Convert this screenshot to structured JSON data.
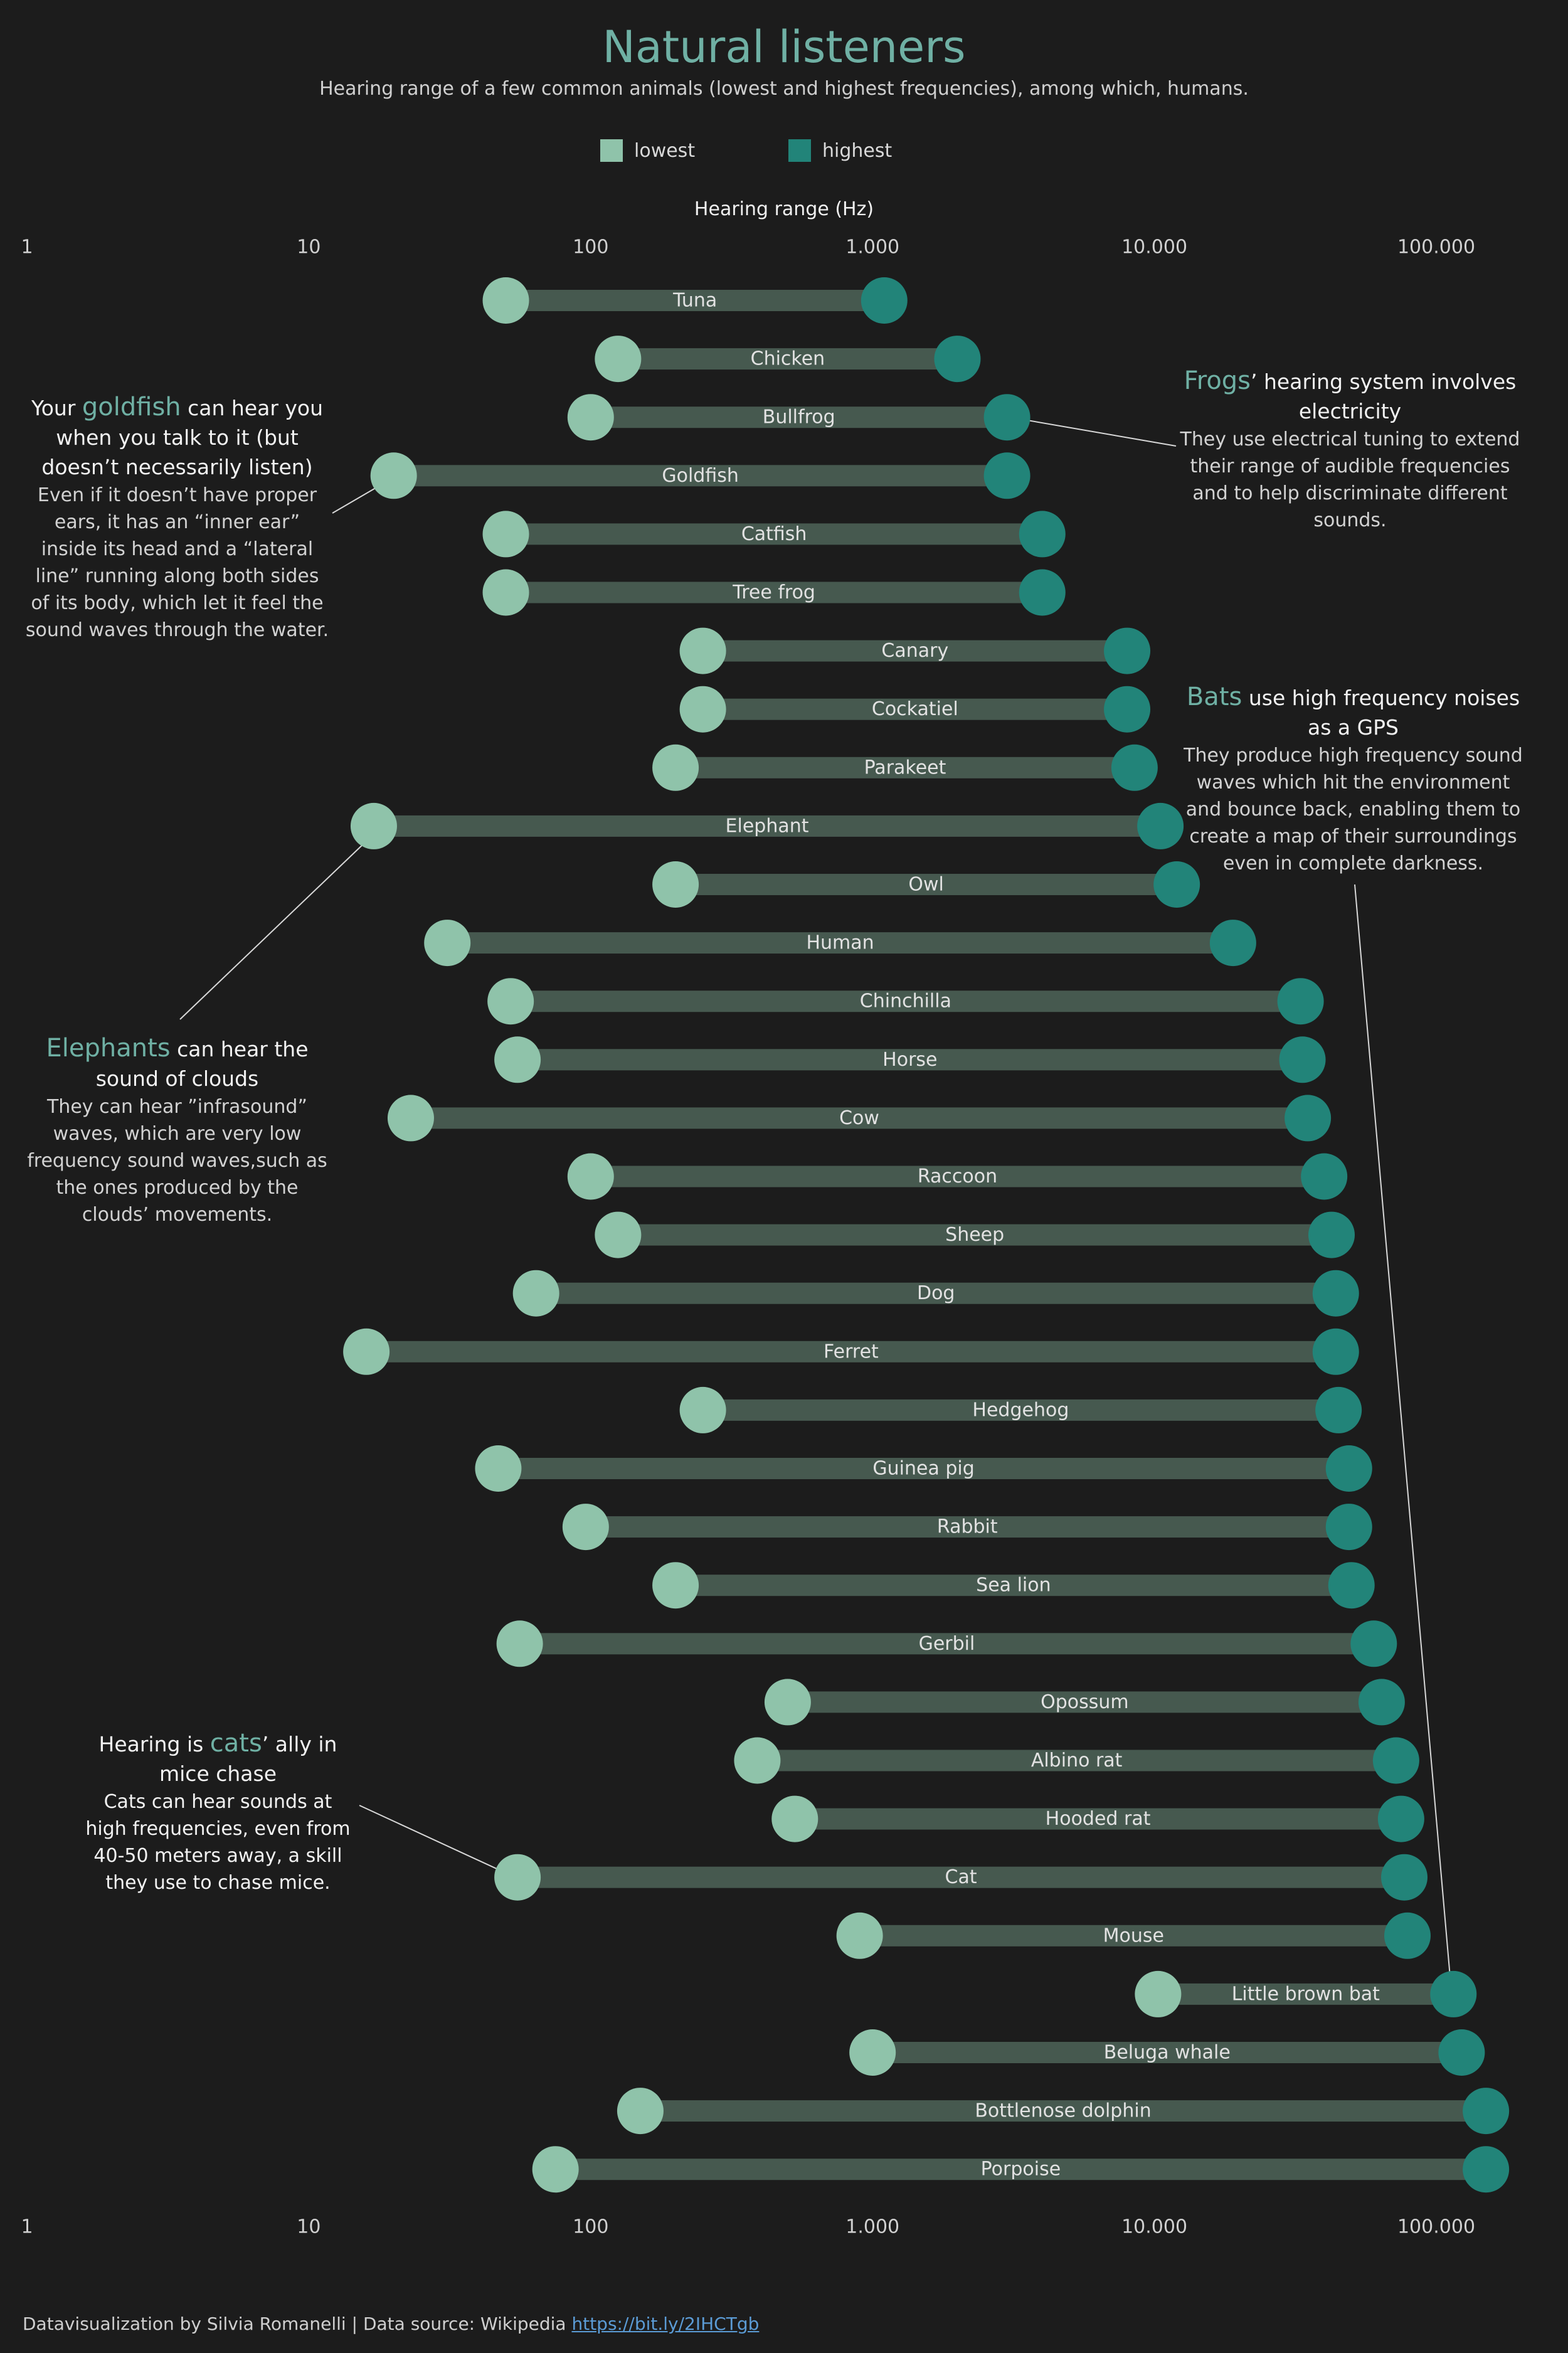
{
  "header": {
    "title": "Natural listeners",
    "subtitle": "Hearing range of a few common animals (lowest and highest frequencies), among which, humans."
  },
  "legend": {
    "lowest": "lowest",
    "highest": "highest"
  },
  "colors": {
    "background": "#1c1c1c",
    "lowest": "#8fc3aa",
    "highest": "#228479",
    "bar": "#46594f",
    "accent": "#6fb0a4"
  },
  "chart_data": {
    "type": "dumbbell",
    "xlabel": "Hearing range (Hz)",
    "x_scale": "log",
    "xlim": [
      1,
      300000
    ],
    "tick_values": [
      1,
      10,
      100,
      1000,
      10000,
      100000
    ],
    "tick_labels": [
      "1",
      "10",
      "100",
      "1.000",
      "10.000",
      "100.000"
    ],
    "series": [
      {
        "name": "lowest"
      },
      {
        "name": "highest"
      }
    ],
    "rows": [
      {
        "name": "Tuna",
        "low": 50,
        "high": 1100
      },
      {
        "name": "Chicken",
        "low": 125,
        "high": 2000
      },
      {
        "name": "Bullfrog",
        "low": 100,
        "high": 3000
      },
      {
        "name": "Goldfish",
        "low": 20,
        "high": 3000
      },
      {
        "name": "Catfish",
        "low": 50,
        "high": 4000
      },
      {
        "name": "Tree frog",
        "low": 50,
        "high": 4000
      },
      {
        "name": "Canary",
        "low": 250,
        "high": 8000
      },
      {
        "name": "Cockatiel",
        "low": 250,
        "high": 8000
      },
      {
        "name": "Parakeet",
        "low": 200,
        "high": 8500
      },
      {
        "name": "Elephant",
        "low": 17,
        "high": 10500
      },
      {
        "name": "Owl",
        "low": 200,
        "high": 12000
      },
      {
        "name": "Human",
        "low": 31,
        "high": 19000
      },
      {
        "name": "Chinchilla",
        "low": 52,
        "high": 33000
      },
      {
        "name": "Horse",
        "low": 55,
        "high": 33500
      },
      {
        "name": "Cow",
        "low": 23,
        "high": 35000
      },
      {
        "name": "Raccoon",
        "low": 100,
        "high": 40000
      },
      {
        "name": "Sheep",
        "low": 125,
        "high": 42500
      },
      {
        "name": "Dog",
        "low": 64,
        "high": 44000
      },
      {
        "name": "Ferret",
        "low": 16,
        "high": 44000
      },
      {
        "name": "Hedgehog",
        "low": 250,
        "high": 45000
      },
      {
        "name": "Guinea pig",
        "low": 47,
        "high": 49000
      },
      {
        "name": "Rabbit",
        "low": 96,
        "high": 49000
      },
      {
        "name": "Sea lion",
        "low": 200,
        "high": 50000
      },
      {
        "name": "Gerbil",
        "low": 56,
        "high": 60000
      },
      {
        "name": "Opossum",
        "low": 500,
        "high": 64000
      },
      {
        "name": "Albino rat",
        "low": 390,
        "high": 72000
      },
      {
        "name": "Hooded rat",
        "low": 530,
        "high": 75000
      },
      {
        "name": "Cat",
        "low": 55,
        "high": 77000
      },
      {
        "name": "Mouse",
        "low": 900,
        "high": 79000
      },
      {
        "name": "Little brown bat",
        "low": 10300,
        "high": 115000
      },
      {
        "name": "Beluga whale",
        "low": 1000,
        "high": 123000
      },
      {
        "name": "Bottlenose dolphin",
        "low": 150,
        "high": 150000
      },
      {
        "name": "Porpoise",
        "low": 75,
        "high": 150000
      }
    ]
  },
  "annotations": {
    "goldfish": {
      "pre": "Your ",
      "highlight": "goldfish",
      "post": " can hear you when you talk to it (but doesn’t necessarily listen)",
      "body": "Even if it doesn’t have proper ears, it has an “inner ear” inside its head and a “lateral line” running along both sides of its body, which let it feel the sound waves through the water."
    },
    "frogs": {
      "pre": "",
      "highlight": "Frogs",
      "post": "’ hearing system involves electricity",
      "body": "They use electrical tuning to extend their range of audible frequencies and to help discriminate different sounds."
    },
    "bats": {
      "pre": "",
      "highlight": "Bats",
      "post": " use high frequency noises as a GPS",
      "body": "They produce high frequency sound waves which hit the environment and bounce back, enabling them to create a map of their surroundings even in complete darkness."
    },
    "elephants": {
      "pre": "",
      "highlight": "Elephants",
      "post": " can hear the sound of clouds",
      "body": "They can hear ”infrasound” waves, which are very low frequency sound waves,such as the ones produced by the clouds’ movements."
    },
    "cats": {
      "pre": "Hearing is ",
      "highlight": "cats",
      "post": "’ ally in mice chase",
      "body": "Cats can hear sounds at high frequencies, even from 40-50 meters away, a skill they use to chase mice."
    }
  },
  "footer": {
    "text": "Datavisualization by Silvia Romanelli | Data source: Wikipedia ",
    "link": "https://bit.ly/2IHCTgb"
  }
}
